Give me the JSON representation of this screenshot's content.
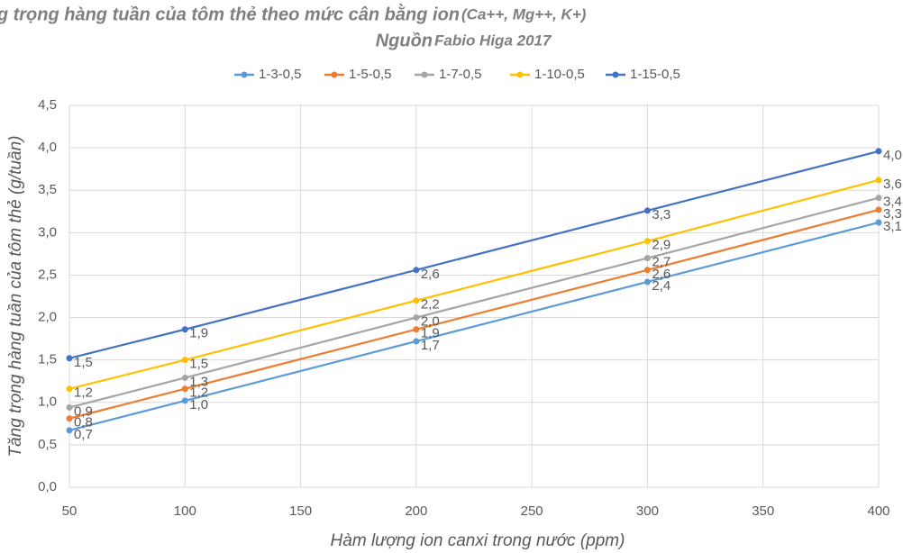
{
  "chart_data": {
    "type": "line",
    "title": [
      "Tăng trọng hàng tuần của tôm thẻ theo mức cân bằng ion",
      "(Ca++, Mg++, K+)"
    ],
    "subtitle": [
      "Nguồn",
      "Fabio Higa 2017"
    ],
    "x_label": "Hàm lượng ion canxi trong nước (ppm)",
    "y_label": "Tăng trọng hàng tuần của tôm thẻ (g/tuần)",
    "x": [
      50,
      100,
      200,
      300,
      400
    ],
    "series": [
      {
        "name": "1-3-0,5",
        "color": "#5b9bd5",
        "values": [
          0.67,
          1.02,
          1.72,
          2.42,
          3.12
        ],
        "value_labels": [
          "0,7",
          "1,0",
          "1,7",
          "2,4",
          "3,1"
        ]
      },
      {
        "name": "1-5-0,5",
        "color": "#ed7d31",
        "values": [
          0.81,
          1.16,
          1.86,
          2.56,
          3.27
        ],
        "value_labels": [
          "0,8",
          "1,2",
          "1,9",
          "2,6",
          "3,3"
        ]
      },
      {
        "name": "1-7-0,5",
        "color": "#a5a5a5",
        "values": [
          0.94,
          1.29,
          2.0,
          2.7,
          3.41
        ],
        "value_labels": [
          "0,9",
          "1,3",
          "2,0",
          "2,7",
          "3,4"
        ]
      },
      {
        "name": "1-10-0,5",
        "color": "#ffc000",
        "values": [
          1.16,
          1.5,
          2.2,
          2.9,
          3.62
        ],
        "value_labels": [
          "1,2",
          "1,5",
          "2,2",
          "2,9",
          "3,6"
        ]
      },
      {
        "name": "1-15-0,5",
        "color": "#4472c4",
        "values": [
          1.52,
          1.86,
          2.56,
          3.26,
          3.96
        ],
        "value_labels": [
          "1,5",
          "1,9",
          "2,6",
          "3,3",
          "4,0"
        ]
      }
    ],
    "xlim": [
      50,
      400
    ],
    "xticks": [
      50,
      100,
      150,
      200,
      250,
      300,
      350,
      400
    ],
    "ylim": [
      0,
      4.5
    ],
    "yticks": [
      {
        "value": 0,
        "label": "0,0"
      },
      {
        "value": 0.5,
        "label": "0,5"
      },
      {
        "value": 1,
        "label": "1,0"
      },
      {
        "value": 1.5,
        "label": "1,5"
      },
      {
        "value": 2,
        "label": "2,0"
      },
      {
        "value": 2.5,
        "label": "2,5"
      },
      {
        "value": 3,
        "label": "3,0"
      },
      {
        "value": 3.5,
        "label": "3,5"
      },
      {
        "value": 4,
        "label": "4,0"
      },
      {
        "value": 4.5,
        "label": "4,5"
      }
    ],
    "grid": true,
    "legend": "top"
  }
}
